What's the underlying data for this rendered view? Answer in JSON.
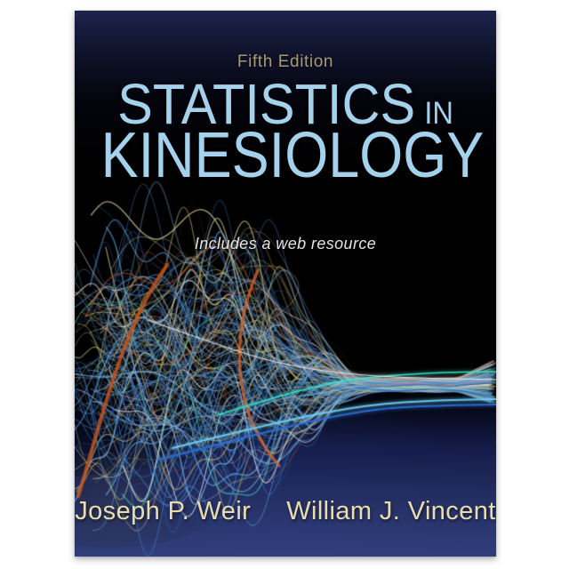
{
  "page": {
    "backdrop_color": "#ffffff"
  },
  "cover": {
    "edition": "Fifth Edition",
    "title": {
      "word1": "STATISTICS",
      "word2": "IN",
      "line2": "KINESIOLOGY"
    },
    "tagline": "Includes a web resource",
    "authors": [
      "Joseph P. Weir",
      "William J. Vincent"
    ],
    "colors": {
      "title_blue": "#a4d1ec",
      "edition_gold": "#a89a74",
      "tagline_white": "#e3e3e3",
      "author_cream": "#e9ddb0",
      "cover_top_navy": "#1d234c",
      "cover_bottom_navy": "#2f3d7a"
    },
    "artwork": {
      "name": "data-streams-graphic",
      "description": "chaotic tangle of multicolor lines on the left converging into ordered horizontal streams toward the right edge, above a navy glow",
      "seed": 42,
      "strand_count": 150,
      "loop_count": 16,
      "palette": [
        {
          "c": "#3d7fc4",
          "w": 16
        },
        {
          "c": "#5b9bd9",
          "w": 14
        },
        {
          "c": "#7db8e8",
          "w": 10
        },
        {
          "c": "#2a5fa8",
          "w": 10
        },
        {
          "c": "#d8cf96",
          "w": 11
        },
        {
          "c": "#c9bd7e",
          "w": 8
        },
        {
          "c": "#e8eef2",
          "w": 7
        },
        {
          "c": "#3fc8b8",
          "w": 6
        },
        {
          "c": "#cc5a2a",
          "w": 3
        },
        {
          "c": "#e07038",
          "w": 3
        },
        {
          "c": "#23427a",
          "w": 8
        }
      ],
      "accent_lines": {
        "teal": "#3ce0c8",
        "sky": "#6ecdf2",
        "deep_blue": "#2e6fd0",
        "orange_thick": "#c2551f",
        "orange_thick2": "#d4622a"
      },
      "bottom_glow": [
        "#182052",
        "#273369",
        "#303e7c"
      ]
    }
  }
}
